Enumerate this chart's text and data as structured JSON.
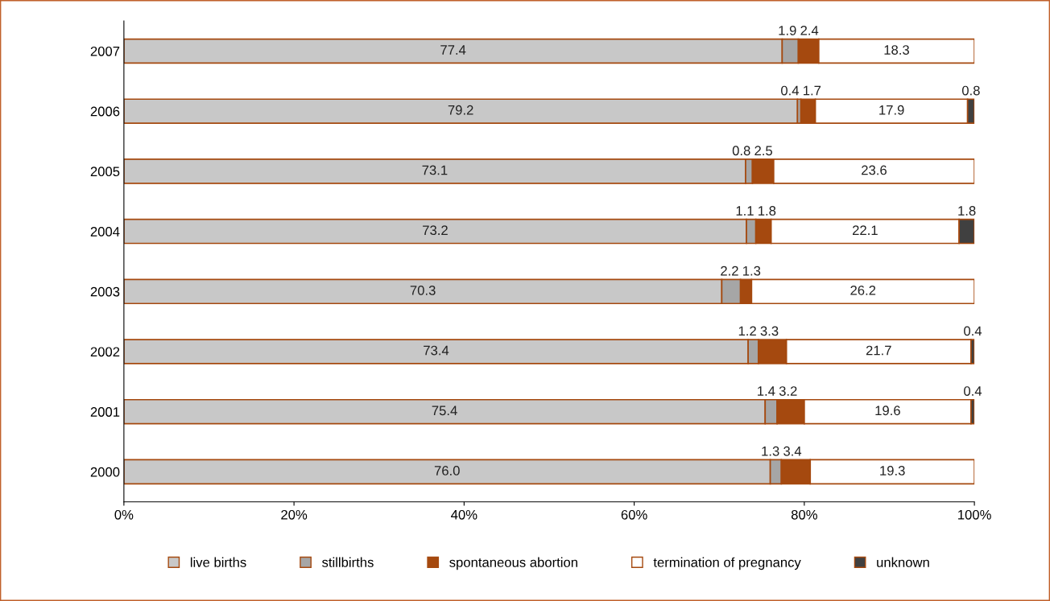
{
  "chart_data": {
    "type": "bar",
    "orientation": "horizontal",
    "stacked": true,
    "categories": [
      "2007",
      "2006",
      "2005",
      "2004",
      "2003",
      "2002",
      "2001",
      "2000"
    ],
    "series": [
      {
        "name": "live births",
        "color": "#c8c8c8",
        "values": [
          77.4,
          79.2,
          73.1,
          73.2,
          70.3,
          73.4,
          75.4,
          76.0
        ],
        "value_labels": [
          "77.4",
          "79.2",
          "73.1",
          "73.2",
          "70.3",
          "73.4",
          "75.4",
          "76.0"
        ]
      },
      {
        "name": "stillbirths",
        "color": "#a6a6a6",
        "values": [
          1.9,
          0.4,
          0.8,
          1.1,
          2.2,
          1.2,
          1.4,
          1.3
        ],
        "value_labels": [
          "1.9",
          "0.4",
          "0.8",
          "1.1",
          "2.2",
          "1.2",
          "1.4",
          "1.3"
        ]
      },
      {
        "name": "spontaneous abortion",
        "color": "#a5490f",
        "values": [
          2.4,
          1.7,
          2.5,
          1.8,
          1.3,
          3.3,
          3.2,
          3.4
        ],
        "value_labels": [
          "2.4",
          "1.7",
          "2.5",
          "1.8",
          "1.3",
          "3.3",
          "3.2",
          "3.4"
        ]
      },
      {
        "name": "termination of pregnancy",
        "color": "#ffffff",
        "values": [
          18.3,
          17.9,
          23.6,
          22.1,
          26.2,
          21.7,
          19.6,
          19.3
        ],
        "value_labels": [
          "18.3",
          "17.9",
          "23.6",
          "22.1",
          "26.2",
          "21.7",
          "19.6",
          "19.3"
        ]
      },
      {
        "name": "unknown",
        "color": "#404040",
        "values": [
          null,
          0.8,
          null,
          1.8,
          null,
          0.4,
          0.4,
          null
        ],
        "value_labels": [
          null,
          "0.8",
          null,
          "1.8",
          null,
          "0.4",
          "0.4",
          null
        ]
      }
    ],
    "xlim": [
      0,
      100
    ],
    "xticks": [
      {
        "value": 0,
        "label": "0%"
      },
      {
        "value": 20,
        "label": "20%"
      },
      {
        "value": 40,
        "label": "40%"
      },
      {
        "value": 60,
        "label": "60%"
      },
      {
        "value": 80,
        "label": "80%"
      },
      {
        "value": 100,
        "label": "100%"
      }
    ],
    "grid": false,
    "legend": "bottom"
  }
}
